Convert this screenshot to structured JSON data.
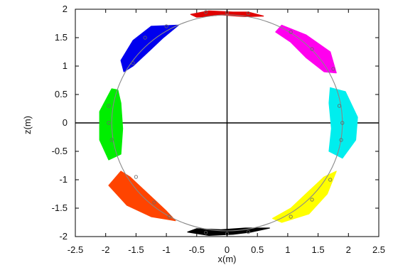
{
  "chart_data": {
    "type": "scatter",
    "title": "",
    "xlabel": "x(m)",
    "ylabel": "z(m)",
    "xlim": [
      -2.5,
      2.5
    ],
    "ylim": [
      -2,
      2
    ],
    "x_ticks": [
      "-2.5",
      "-2",
      "-1.5",
      "-1",
      "-0.5",
      "0",
      "0.5",
      "1",
      "1.5",
      "2",
      "2.5"
    ],
    "y_ticks": [
      "-2",
      "-1.5",
      "-1",
      "-0.5",
      "0",
      "0.5",
      "1",
      "1.5",
      "2"
    ],
    "grid": false,
    "reference_lines": [
      {
        "orientation": "horizontal",
        "value": 0
      },
      {
        "orientation": "vertical",
        "value": 0
      }
    ],
    "circle": {
      "center": [
        0,
        0
      ],
      "radius": 1.9,
      "color": "#888888"
    },
    "trajectory_points": [
      [
        -0.35,
        1.95
      ],
      [
        0.0,
        1.94
      ],
      [
        0.35,
        1.93
      ],
      [
        -1.35,
        1.5
      ],
      [
        -1.0,
        1.7
      ],
      [
        -1.55,
        1.05
      ],
      [
        1.05,
        1.6
      ],
      [
        1.4,
        1.3
      ],
      [
        1.75,
        0.95
      ],
      [
        -1.95,
        0.3
      ],
      [
        -1.95,
        0.0
      ],
      [
        -1.9,
        -0.3
      ],
      [
        1.85,
        0.3
      ],
      [
        1.9,
        0.0
      ],
      [
        1.88,
        -0.3
      ],
      [
        -1.5,
        -0.95
      ],
      [
        -1.2,
        -1.4
      ],
      [
        -0.95,
        -1.65
      ],
      [
        1.05,
        -1.65
      ],
      [
        1.4,
        -1.35
      ],
      [
        1.7,
        -1.0
      ],
      [
        -0.35,
        -1.93
      ],
      [
        0.0,
        -1.95
      ],
      [
        0.35,
        -1.92
      ]
    ],
    "clusters": [
      {
        "color": "#e00000",
        "points": [
          [
            -0.6,
            1.91
          ],
          [
            -0.3,
            1.97
          ],
          [
            0.1,
            1.95
          ],
          [
            0.35,
            1.95
          ],
          [
            0.6,
            1.88
          ],
          [
            0.3,
            1.87
          ],
          [
            -0.1,
            1.9
          ],
          [
            -0.5,
            1.86
          ]
        ]
      },
      {
        "color": "#0000ee",
        "points": [
          [
            -0.8,
            1.72
          ],
          [
            -1.25,
            1.7
          ],
          [
            -1.55,
            1.45
          ],
          [
            -1.75,
            1.1
          ],
          [
            -1.7,
            0.9
          ],
          [
            -1.55,
            1.0
          ],
          [
            -1.25,
            1.3
          ],
          [
            -1.05,
            1.5
          ]
        ]
      },
      {
        "color": "#ff00ee",
        "points": [
          [
            0.9,
            1.72
          ],
          [
            1.3,
            1.55
          ],
          [
            1.7,
            1.25
          ],
          [
            1.8,
            0.88
          ],
          [
            1.6,
            0.9
          ],
          [
            1.3,
            1.15
          ],
          [
            1.05,
            1.42
          ],
          [
            0.8,
            1.6
          ]
        ]
      },
      {
        "color": "#00ee00",
        "points": [
          [
            -1.9,
            0.6
          ],
          [
            -2.1,
            0.2
          ],
          [
            -2.1,
            -0.3
          ],
          [
            -1.95,
            -0.65
          ],
          [
            -1.75,
            -0.55
          ],
          [
            -1.72,
            -0.1
          ],
          [
            -1.75,
            0.35
          ],
          [
            -1.8,
            0.58
          ]
        ]
      },
      {
        "color": "#00eeee",
        "points": [
          [
            1.7,
            0.62
          ],
          [
            1.95,
            0.55
          ],
          [
            2.15,
            0.1
          ],
          [
            2.12,
            -0.3
          ],
          [
            1.9,
            -0.62
          ],
          [
            1.68,
            -0.5
          ],
          [
            1.72,
            -0.1
          ],
          [
            1.68,
            0.35
          ]
        ]
      },
      {
        "color": "#ff4400",
        "points": [
          [
            -1.75,
            -0.85
          ],
          [
            -1.95,
            -1.1
          ],
          [
            -1.65,
            -1.45
          ],
          [
            -1.25,
            -1.65
          ],
          [
            -0.85,
            -1.72
          ],
          [
            -1.0,
            -1.55
          ],
          [
            -1.3,
            -1.25
          ],
          [
            -1.6,
            -0.95
          ]
        ]
      },
      {
        "color": "#ffff00",
        "points": [
          [
            0.9,
            -1.75
          ],
          [
            1.35,
            -1.6
          ],
          [
            1.65,
            -1.25
          ],
          [
            1.8,
            -0.85
          ],
          [
            1.6,
            -0.95
          ],
          [
            1.3,
            -1.25
          ],
          [
            1.05,
            -1.5
          ],
          [
            0.75,
            -1.68
          ]
        ]
      },
      {
        "color": "#000000",
        "points": [
          [
            -0.65,
            -1.92
          ],
          [
            -0.3,
            -1.98
          ],
          [
            0.1,
            -1.96
          ],
          [
            0.4,
            -1.92
          ],
          [
            0.7,
            -1.85
          ],
          [
            0.3,
            -1.85
          ],
          [
            -0.1,
            -1.88
          ],
          [
            -0.5,
            -1.86
          ]
        ]
      }
    ]
  }
}
